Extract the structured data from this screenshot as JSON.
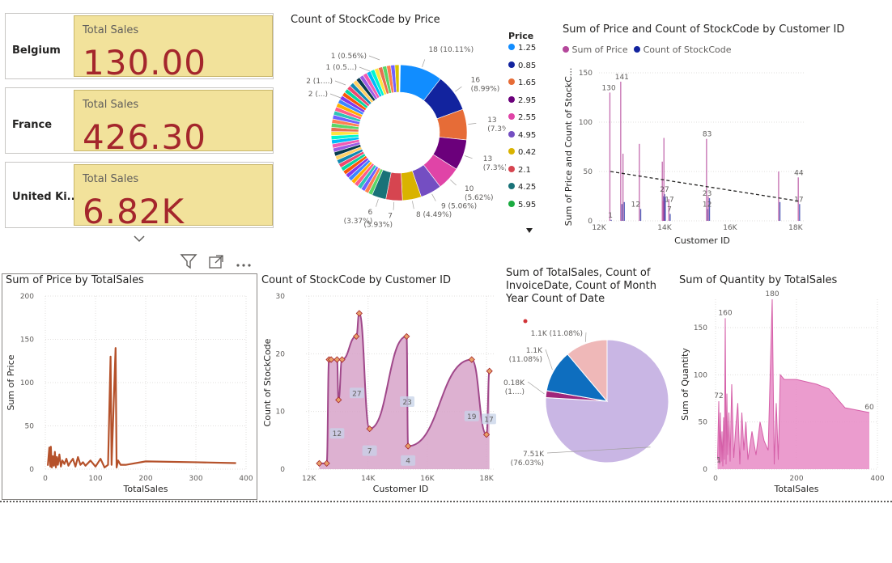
{
  "cards": [
    {
      "country": "Belgium",
      "title": "Total Sales",
      "value": "130.00"
    },
    {
      "country": "France",
      "title": "Total Sales",
      "value": "426.30"
    },
    {
      "country": "United Ki...",
      "title": "Total Sales",
      "value": "6.82K"
    }
  ],
  "icons": {
    "scroll": "chevron-down-icon",
    "filter": "filter-icon",
    "focus": "focus-mode-icon",
    "more": "more-options-icon"
  },
  "colors": {
    "card_bg": "#f2e29b",
    "card_value": "#a4262c",
    "line_orange": "#b5512a",
    "area_purple": "#a0488a",
    "area_pink": "#e88bc6"
  },
  "chart_data": [
    {
      "id": "donut",
      "type": "pie",
      "title": "Count of StockCode by Price",
      "legend_title": "Price",
      "legend": [
        "1.25",
        "0.85",
        "1.65",
        "2.95",
        "2.55",
        "4.95",
        "0.42",
        "2.1",
        "4.25",
        "5.95"
      ],
      "legend_colors": [
        "#118dff",
        "#12239e",
        "#e66c37",
        "#6b007b",
        "#e044a7",
        "#744ec2",
        "#d9b300",
        "#d64550",
        "#197278",
        "#1aab40"
      ],
      "slices": [
        {
          "price": "1.25",
          "count": 18,
          "label": "18 (10.11%)"
        },
        {
          "price": "0.85",
          "count": 16,
          "label": "16\n(8.99%)"
        },
        {
          "price": "1.65",
          "count": 13,
          "label": "13\n(7.3%)"
        },
        {
          "price": "2.95",
          "count": 13,
          "label": "13\n(7.3%)"
        },
        {
          "price": "2.55",
          "count": 10,
          "label": "10\n(5.62%)"
        },
        {
          "price": "4.95",
          "count": 9,
          "label": "9 (5.06%)"
        },
        {
          "price": "0.42",
          "count": 8,
          "label": "8 (4.49%)"
        },
        {
          "price": "2.1",
          "count": 7,
          "label": "7\n(3.93%)"
        },
        {
          "price": "4.25",
          "count": 6,
          "label": "6\n(3.37%)"
        }
      ],
      "small_labels": [
        "1 (0.56%)",
        "1 (0.5...)",
        "2 (1....)",
        "2 (...)"
      ]
    },
    {
      "id": "price_count_by_customer",
      "type": "bar",
      "title": "Sum of Price and Count of StockCode by Customer ID",
      "series": [
        {
          "name": "Sum of Price",
          "color": "#b4479b"
        },
        {
          "name": "Count of StockCode",
          "color": "#12239e"
        }
      ],
      "ylabel": "Sum of Price and Count of StockC...",
      "xlabel": "Customer ID",
      "xticks": [
        "12K",
        "14K",
        "16K",
        "18K"
      ],
      "yticks": [
        "0",
        "50",
        "100",
        "150"
      ],
      "xlim": [
        12000,
        18300
      ],
      "ylim": [
        0,
        150
      ],
      "bars": [
        {
          "x": 12350,
          "price": 130,
          "count": 1
        },
        {
          "x": 12680,
          "price": 141,
          "count": 17
        },
        {
          "x": 12750,
          "price": 68,
          "count": 19
        },
        {
          "x": 13250,
          "price": 78,
          "count": 12
        },
        {
          "x": 13950,
          "price": 60,
          "count": 25
        },
        {
          "x": 13980,
          "price": 20,
          "count": 27
        },
        {
          "x": 14000,
          "price": 84,
          "count": 24
        },
        {
          "x": 14150,
          "price": 22,
          "count": 7
        },
        {
          "x": 15300,
          "price": 83,
          "count": 12
        },
        {
          "x": 15350,
          "price": 25,
          "count": 23
        },
        {
          "x": 17500,
          "price": 50,
          "count": 19
        },
        {
          "x": 18100,
          "price": 44,
          "count": 17
        }
      ],
      "data_labels": [
        {
          "x": 12300,
          "y": 130,
          "text": "130"
        },
        {
          "x": 12700,
          "y": 141,
          "text": "141"
        },
        {
          "x": 12350,
          "y": 1,
          "text": "1"
        },
        {
          "x": 13120,
          "y": 12,
          "text": "12"
        },
        {
          "x": 14000,
          "y": 27,
          "text": "27"
        },
        {
          "x": 14150,
          "y": 17,
          "text": "17"
        },
        {
          "x": 14150,
          "y": 7,
          "text": "7"
        },
        {
          "x": 15300,
          "y": 83,
          "text": "83"
        },
        {
          "x": 15300,
          "y": 23,
          "text": "23"
        },
        {
          "x": 15300,
          "y": 12,
          "text": "12"
        },
        {
          "x": 18100,
          "y": 44,
          "text": "44"
        },
        {
          "x": 18100,
          "y": 17,
          "text": "17"
        }
      ],
      "trend": {
        "x1": 12350,
        "y1": 50,
        "x2": 18100,
        "y2": 20
      }
    },
    {
      "id": "price_by_totalsales",
      "type": "line",
      "title": "Sum of Price by TotalSales",
      "xlabel": "TotalSales",
      "ylabel": "Sum of Price",
      "xticks": [
        "0",
        "100",
        "200",
        "300",
        "400"
      ],
      "yticks": [
        "0",
        "50",
        "100",
        "150",
        "200"
      ],
      "xlim": [
        0,
        400
      ],
      "ylim": [
        0,
        200
      ],
      "x": [
        5,
        8,
        10,
        11,
        13,
        15,
        17,
        19,
        21,
        23,
        25,
        28,
        31,
        34,
        38,
        42,
        46,
        50,
        55,
        60,
        65,
        70,
        75,
        80,
        90,
        100,
        110,
        118,
        125,
        130,
        132,
        140,
        142,
        145,
        150,
        160,
        200,
        300,
        380
      ],
      "y": [
        4,
        25,
        3,
        26,
        2,
        15,
        4,
        20,
        2,
        14,
        5,
        17,
        3,
        10,
        6,
        12,
        4,
        8,
        12,
        3,
        14,
        5,
        8,
        4,
        10,
        3,
        12,
        2,
        5,
        130,
        5,
        140,
        2,
        10,
        5,
        5,
        9,
        8,
        7
      ]
    },
    {
      "id": "stockcode_by_customer",
      "type": "area",
      "title": "Count of StockCode by Customer ID",
      "xlabel": "Customer ID",
      "ylabel": "Count of StockCode",
      "xticks": [
        "12K",
        "14K",
        "16K",
        "18K"
      ],
      "yticks": [
        "0",
        "10",
        "20",
        "30"
      ],
      "xlim": [
        11900,
        18300
      ],
      "ylim": [
        0,
        30
      ],
      "x": [
        12350,
        12600,
        12680,
        12750,
        12950,
        13000,
        13120,
        13600,
        13700,
        14050,
        15300,
        15350,
        17500,
        18000,
        18100
      ],
      "y": [
        1,
        1,
        19,
        19,
        19,
        12,
        19,
        23,
        27,
        7,
        23,
        4,
        19,
        6,
        17
      ],
      "data_labels": [
        {
          "x": 12950,
          "y": 6,
          "text": "12"
        },
        {
          "x": 13620,
          "y": 13,
          "text": "27"
        },
        {
          "x": 14050,
          "y": 3,
          "text": "7"
        },
        {
          "x": 15320,
          "y": 11.5,
          "text": "23"
        },
        {
          "x": 15350,
          "y": 1.3,
          "text": "4"
        },
        {
          "x": 17500,
          "y": 9,
          "text": "19"
        },
        {
          "x": 18080,
          "y": 8.5,
          "text": "17"
        }
      ]
    },
    {
      "id": "totals_pie",
      "type": "pie",
      "title": "Sum of TotalSales, Count of InvoiceDate, Count of Month Year Count of Date",
      "slices": [
        {
          "value": 7.51,
          "color": "#c9b6e4",
          "label": "7.51K\n(76.03%)"
        },
        {
          "value": 0.18,
          "color": "#a0267a",
          "label": "0.18K\n(1....)"
        },
        {
          "value": 1.1,
          "color": "#0e6ebf",
          "label": "1.1K\n(11.08%)"
        },
        {
          "value": 1.1,
          "color": "#efb8b8",
          "label": "1.1K (11.08%)"
        }
      ]
    },
    {
      "id": "quantity_by_totalsales",
      "type": "area",
      "title": "Sum of Quantity by TotalSales",
      "xlabel": "TotalSales",
      "ylabel": "Sum of Quantity",
      "xticks": [
        "0",
        "200",
        "400"
      ],
      "yticks": [
        "0",
        "50",
        "100",
        "150"
      ],
      "xlim": [
        0,
        400
      ],
      "ylim": [
        0,
        180
      ],
      "x": [
        5,
        8,
        10,
        12,
        14,
        16,
        18,
        20,
        22,
        24,
        26,
        28,
        30,
        33,
        36,
        40,
        45,
        50,
        55,
        60,
        65,
        70,
        75,
        80,
        90,
        100,
        110,
        120,
        130,
        140,
        145,
        150,
        155,
        160,
        170,
        200,
        250,
        280,
        320,
        380
      ],
      "y": [
        10,
        72,
        5,
        60,
        8,
        40,
        3,
        55,
        10,
        160,
        5,
        80,
        15,
        60,
        8,
        90,
        12,
        45,
        70,
        5,
        60,
        20,
        50,
        10,
        40,
        15,
        50,
        30,
        20,
        180,
        5,
        70,
        10,
        100,
        95,
        95,
        90,
        85,
        65,
        60
      ],
      "data_labels": [
        {
          "x": 24,
          "y": 160,
          "text": "160"
        },
        {
          "x": 140,
          "y": 180,
          "text": "180"
        },
        {
          "x": 8,
          "y": 72,
          "text": "72"
        },
        {
          "x": 8,
          "y": 4,
          "text": "1"
        },
        {
          "x": 380,
          "y": 60,
          "text": "60"
        }
      ]
    }
  ]
}
